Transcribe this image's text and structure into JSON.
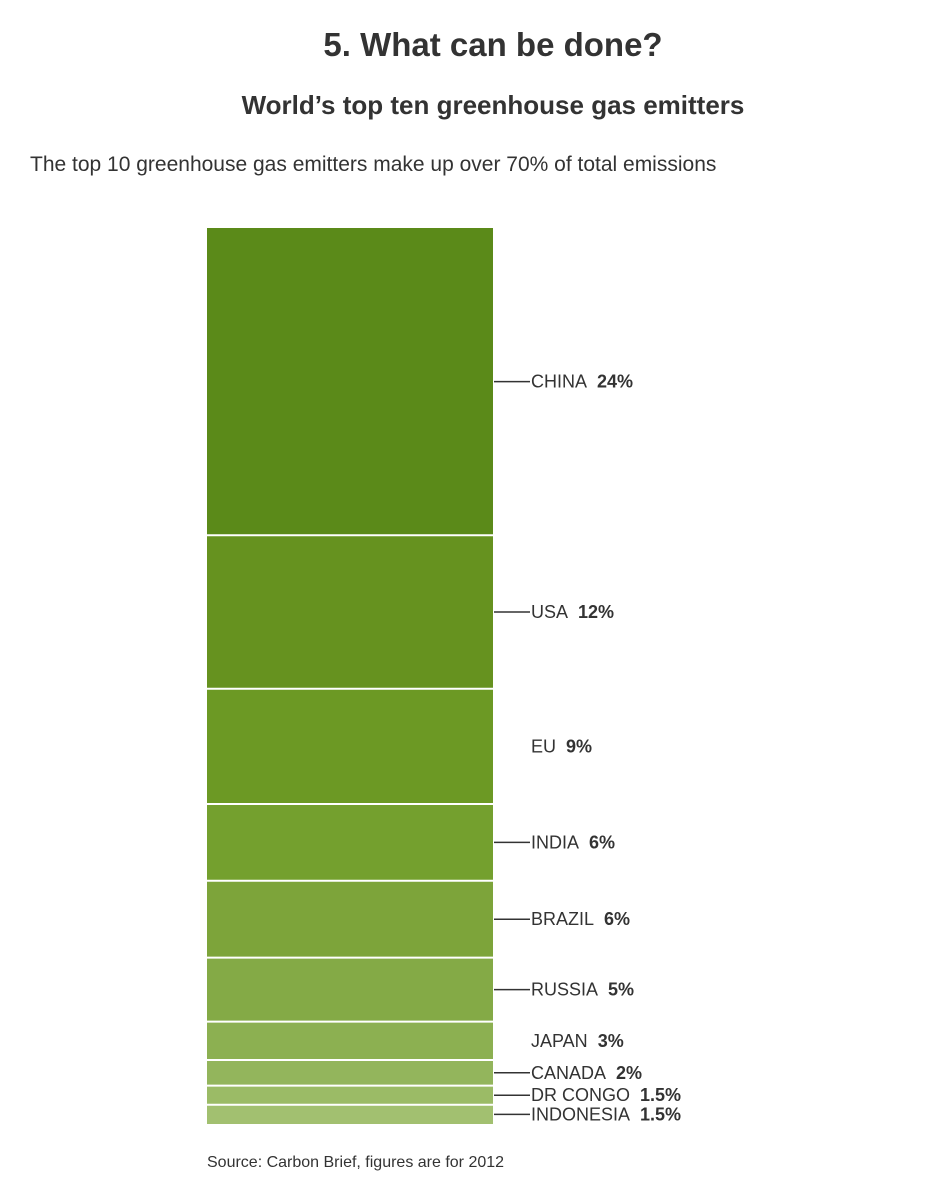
{
  "header": {
    "section_title": "5. What can be done?",
    "chart_title": "World’s top ten greenhouse gas emitters",
    "subtitle": "The top 10 greenhouse gas emitters make up over 70% of total emissions"
  },
  "footer": {
    "source": "Source: Carbon Brief, figures are for 2012"
  },
  "chart_data": {
    "type": "bar",
    "layout": "stacked-single-column",
    "title": "World’s top ten greenhouse gas emitters",
    "subtitle": "The top 10 greenhouse gas emitters make up over 70% of total emissions",
    "unit": "% of total emissions",
    "categories": [
      "CHINA",
      "USA",
      "EU",
      "INDIA",
      "BRAZIL",
      "RUSSIA",
      "JAPAN",
      "CANADA",
      "DR CONGO",
      "INDONESIA"
    ],
    "values": [
      24,
      12,
      9,
      6,
      6,
      5,
      3,
      2,
      1.5,
      1.5
    ],
    "value_labels": [
      "24%",
      "12%",
      "9%",
      "6%",
      "6%",
      "5%",
      "3%",
      "2%",
      "1.5%",
      "1.5%"
    ],
    "leader_lines": [
      true,
      true,
      false,
      true,
      true,
      true,
      false,
      true,
      true,
      true
    ],
    "colors": [
      "#5b8a19",
      "#66921f",
      "#6c9924",
      "#74a02e",
      "#7da43a",
      "#84aa46",
      "#8cb051",
      "#93b55c",
      "#9bbb66",
      "#a2c070"
    ],
    "separator_color": "#ffffff",
    "leader_line_color": "#333333"
  }
}
